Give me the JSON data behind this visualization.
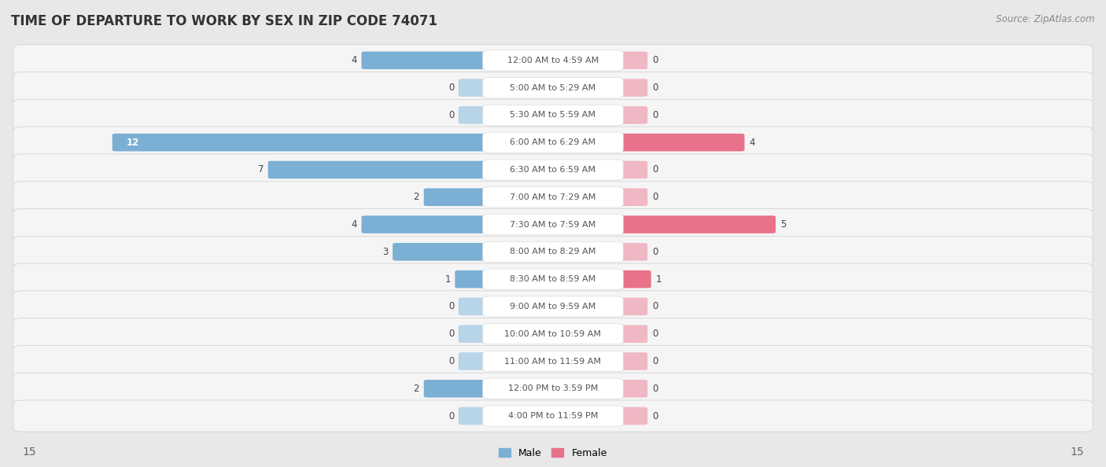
{
  "title": "TIME OF DEPARTURE TO WORK BY SEX IN ZIP CODE 74071",
  "source": "Source: ZipAtlas.com",
  "categories": [
    "12:00 AM to 4:59 AM",
    "5:00 AM to 5:29 AM",
    "5:30 AM to 5:59 AM",
    "6:00 AM to 6:29 AM",
    "6:30 AM to 6:59 AM",
    "7:00 AM to 7:29 AM",
    "7:30 AM to 7:59 AM",
    "8:00 AM to 8:29 AM",
    "8:30 AM to 8:59 AM",
    "9:00 AM to 9:59 AM",
    "10:00 AM to 10:59 AM",
    "11:00 AM to 11:59 AM",
    "12:00 PM to 3:59 PM",
    "4:00 PM to 11:59 PM"
  ],
  "male": [
    4,
    0,
    0,
    12,
    7,
    2,
    4,
    3,
    1,
    0,
    0,
    0,
    2,
    0
  ],
  "female": [
    0,
    0,
    0,
    4,
    0,
    0,
    5,
    0,
    1,
    0,
    0,
    0,
    0,
    0
  ],
  "male_color": "#7bafd4",
  "female_color": "#e8728a",
  "male_color_zero": "#b8d4e8",
  "female_color_zero": "#f0b8c4",
  "male_label": "Male",
  "female_label": "Female",
  "max_val": 15,
  "bg_color": "#e8e8e8",
  "row_bg": "#f5f5f5",
  "title_fontsize": 12,
  "source_fontsize": 8.5,
  "cat_fontsize": 8,
  "val_fontsize": 8.5,
  "axis_label_fontsize": 10
}
